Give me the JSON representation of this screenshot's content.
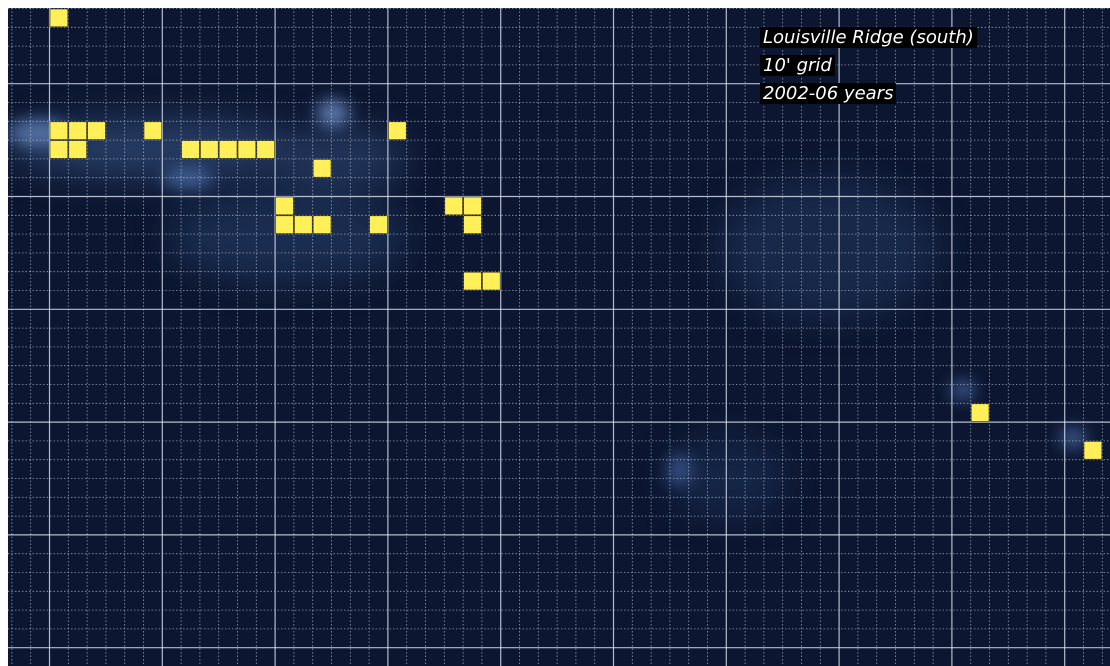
{
  "legend": {
    "line1": "Louisville Ridge (south)",
    "line2": "10' grid",
    "line3": "2002-06 years"
  },
  "colors": {
    "ocean": "#0c1630",
    "grid_major": "#dfe5f5",
    "grid_minor": "#c9d2ea",
    "cell_fill": "#fff05a",
    "cell_stroke": "#2a2a10"
  },
  "grid": {
    "resolution": "10' grid",
    "occupied_cells": [
      [
        1,
        0
      ],
      [
        1,
        6
      ],
      [
        2,
        6
      ],
      [
        3,
        6
      ],
      [
        6,
        6
      ],
      [
        19,
        6
      ],
      [
        1,
        7
      ],
      [
        2,
        7
      ],
      [
        8,
        7
      ],
      [
        9,
        7
      ],
      [
        10,
        7
      ],
      [
        11,
        7
      ],
      [
        12,
        7
      ],
      [
        15,
        8
      ],
      [
        13,
        10
      ],
      [
        22,
        10
      ],
      [
        23,
        10
      ],
      [
        13,
        11
      ],
      [
        14,
        11
      ],
      [
        15,
        11
      ],
      [
        18,
        11
      ],
      [
        23,
        11
      ],
      [
        23,
        14
      ],
      [
        24,
        14
      ],
      [
        50,
        21
      ],
      [
        56,
        23
      ]
    ]
  }
}
